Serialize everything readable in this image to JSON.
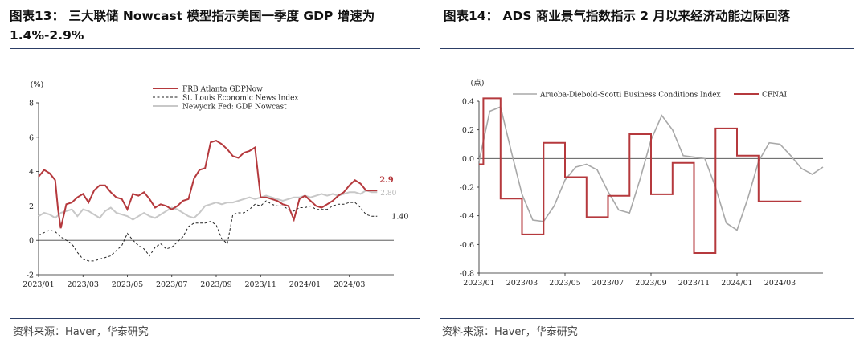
{
  "panels": [
    {
      "title": "图表13：  三大联储  Nowcast  模型指示美国一季度  GDP  增速为 1.4%-2.9%",
      "source": "资料来源：Haver，华泰研究"
    },
    {
      "title": "图表14：  ADS 商业景气指数指示 2 月以来经济动能边际回落",
      "source": "资料来源：Haver，华泰研究"
    }
  ],
  "chart_data": [
    {
      "type": "line",
      "ylabel": "(%)",
      "ylim": [
        -2,
        8
      ],
      "yticks": [
        "-2",
        "0",
        "2",
        "4",
        "6",
        "8"
      ],
      "xlim": [
        0,
        64
      ],
      "xticks": [
        "2023/01",
        "2023/03",
        "2023/05",
        "2023/07",
        "2023/09",
        "2023/11",
        "2024/01",
        "2024/03"
      ],
      "legend_position": "top-center",
      "colors": {
        "atlanta": "#b5393d",
        "stlouis": "#222222",
        "newyork": "#c8c8c8"
      },
      "annotations": [
        {
          "text": "2.9",
          "series": "FRB Atlanta GDPNow",
          "color": "#b5393d"
        },
        {
          "text": "2.80",
          "series": "Newyork Fed: GDP Nowcast",
          "color": "#b8b8b8"
        },
        {
          "text": "1.40",
          "series": "St. Louis Economic News Index",
          "color": "#222222"
        }
      ],
      "series": [
        {
          "name": "FRB Atlanta GDPNow",
          "x": [
            0,
            1,
            2,
            3,
            3.5,
            4,
            5,
            6,
            7,
            8,
            9,
            10,
            11,
            12,
            13,
            14,
            15,
            16,
            17,
            18,
            19,
            20,
            21,
            22,
            23,
            24,
            25,
            26,
            27,
            28,
            29,
            30,
            31,
            32,
            33,
            34,
            35,
            36,
            37,
            38,
            39,
            40,
            41,
            42,
            43,
            44,
            45,
            46,
            47,
            48,
            49,
            50,
            51,
            52,
            53,
            54,
            55,
            56,
            57,
            58,
            59,
            60,
            61
          ],
          "values": [
            3.7,
            4.1,
            3.9,
            3.5,
            1.8,
            0.7,
            2.1,
            2.2,
            2.5,
            2.7,
            2.2,
            2.9,
            3.2,
            3.2,
            2.8,
            2.5,
            2.4,
            1.8,
            2.7,
            2.6,
            2.8,
            2.4,
            1.9,
            2.1,
            2.0,
            1.8,
            2.0,
            2.3,
            2.4,
            3.6,
            4.1,
            4.2,
            5.7,
            5.8,
            5.6,
            5.3,
            4.9,
            4.8,
            5.1,
            5.2,
            5.4,
            2.5,
            2.5,
            2.4,
            2.3,
            2.1,
            2.0,
            1.2,
            2.4,
            2.6,
            2.3,
            2.0,
            1.9,
            2.1,
            2.3,
            2.6,
            2.8,
            3.2,
            3.5,
            3.3,
            2.9,
            2.9,
            2.9
          ]
        },
        {
          "name": "St. Louis Economic News Index",
          "x": [
            0,
            2,
            3,
            4,
            5,
            6,
            7,
            8,
            9,
            10,
            11,
            12,
            13,
            14,
            15,
            16,
            17,
            18,
            19,
            20,
            21,
            22,
            23,
            24,
            25,
            26,
            27,
            28,
            29,
            30,
            31,
            32,
            33,
            34,
            35,
            36,
            37,
            38,
            39,
            40,
            41,
            42,
            43,
            44,
            45,
            46,
            47,
            48,
            49,
            50,
            51,
            52,
            53,
            54,
            55,
            56,
            57,
            58,
            59,
            60,
            61
          ],
          "values": [
            0.3,
            0.6,
            0.5,
            0.2,
            0.0,
            -0.2,
            -0.7,
            -1.1,
            -1.2,
            -1.2,
            -1.1,
            -1.0,
            -0.9,
            -0.6,
            -0.3,
            0.4,
            0.0,
            -0.3,
            -0.5,
            -0.9,
            -0.4,
            -0.2,
            -0.5,
            -0.4,
            -0.1,
            0.2,
            0.8,
            1.0,
            1.0,
            1.0,
            1.1,
            0.9,
            0.1,
            -0.2,
            1.5,
            1.6,
            1.6,
            1.8,
            2.1,
            2.0,
            2.3,
            2.1,
            2.0,
            2.0,
            1.8,
            1.7,
            1.9,
            1.9,
            2.0,
            1.8,
            1.8,
            1.8,
            2.0,
            2.1,
            2.1,
            2.2,
            2.2,
            1.9,
            1.5,
            1.4,
            1.4
          ]
        },
        {
          "name": "Newyork Fed: GDP Nowcast",
          "x": [
            0,
            1,
            2,
            3,
            4,
            5,
            6,
            7,
            8,
            9,
            10,
            11,
            12,
            13,
            14,
            15,
            16,
            17,
            18,
            19,
            20,
            21,
            22,
            23,
            24,
            25,
            26,
            27,
            28,
            29,
            30,
            31,
            32,
            33,
            34,
            35,
            36,
            37,
            38,
            39,
            40,
            41,
            42,
            43,
            44,
            45,
            46,
            47,
            48,
            49,
            50,
            51,
            52,
            53,
            54,
            55,
            56,
            57,
            58,
            59,
            60,
            61
          ],
          "values": [
            1.4,
            1.6,
            1.5,
            1.3,
            1.6,
            1.7,
            1.8,
            1.4,
            1.8,
            1.7,
            1.5,
            1.3,
            1.7,
            1.9,
            1.6,
            1.5,
            1.4,
            1.2,
            1.4,
            1.6,
            1.4,
            1.3,
            1.5,
            1.7,
            1.9,
            1.8,
            1.6,
            1.4,
            1.3,
            1.6,
            2.0,
            2.1,
            2.2,
            2.1,
            2.2,
            2.2,
            2.3,
            2.4,
            2.5,
            2.4,
            2.5,
            2.6,
            2.5,
            2.4,
            2.3,
            2.4,
            2.5,
            2.5,
            2.6,
            2.5,
            2.6,
            2.7,
            2.6,
            2.7,
            2.6,
            2.7,
            2.8,
            2.8,
            2.7,
            2.9,
            2.8,
            2.8
          ]
        }
      ]
    },
    {
      "type": "line",
      "ylabel": "(点)",
      "ylim": [
        -0.8,
        0.4
      ],
      "yticks": [
        "-0.8",
        "-0.6",
        "-0.4",
        "-0.2",
        "0.0",
        "0.2",
        "0.4"
      ],
      "xlim": [
        0,
        64
      ],
      "xticks": [
        "2023/01",
        "2023/03",
        "2023/05",
        "2023/07",
        "2023/09",
        "2023/11",
        "2024/01",
        "2024/03"
      ],
      "legend_position": "top",
      "colors": {
        "ads": "#a8a8a8",
        "cfnai": "#b5393d"
      },
      "series": [
        {
          "name": "Aruoba-Diebold-Scotti Business Conditions Index",
          "x": [
            0,
            2,
            4,
            6,
            8,
            10,
            12,
            14,
            16,
            18,
            20,
            22,
            24,
            26,
            28,
            30,
            32,
            34,
            36,
            38,
            40,
            42,
            44,
            46,
            48,
            50,
            52,
            54,
            56,
            58,
            60,
            62,
            64
          ],
          "values": [
            -0.02,
            0.33,
            0.36,
            0.05,
            -0.25,
            -0.43,
            -0.44,
            -0.33,
            -0.15,
            -0.06,
            -0.04,
            -0.08,
            -0.23,
            -0.36,
            -0.38,
            -0.14,
            0.13,
            0.3,
            0.2,
            0.02,
            0.01,
            0.0,
            -0.2,
            -0.45,
            -0.5,
            -0.28,
            -0.02,
            0.11,
            0.1,
            0.02,
            -0.07,
            -0.11,
            -0.06
          ]
        },
        {
          "name": "CFNAI",
          "steps": [
            {
              "from": 0,
              "to": 0.8,
              "value": -0.04
            },
            {
              "from": 0.8,
              "to": 4,
              "value": 0.42
            },
            {
              "from": 4,
              "to": 8,
              "value": -0.28
            },
            {
              "from": 8,
              "to": 12,
              "value": -0.53
            },
            {
              "from": 12,
              "to": 16,
              "value": 0.11
            },
            {
              "from": 16,
              "to": 20,
              "value": -0.13
            },
            {
              "from": 20,
              "to": 24,
              "value": -0.41
            },
            {
              "from": 24,
              "to": 28,
              "value": -0.26
            },
            {
              "from": 28,
              "to": 32,
              "value": 0.17
            },
            {
              "from": 32,
              "to": 36,
              "value": -0.25
            },
            {
              "from": 36,
              "to": 40,
              "value": -0.03
            },
            {
              "from": 40,
              "to": 44,
              "value": -0.66
            },
            {
              "from": 44,
              "to": 48,
              "value": 0.21
            },
            {
              "from": 48,
              "to": 52,
              "value": 0.02
            },
            {
              "from": 52,
              "to": 56,
              "value": -0.3
            },
            {
              "from": 56,
              "to": 60,
              "value": -0.3
            }
          ]
        }
      ]
    }
  ]
}
